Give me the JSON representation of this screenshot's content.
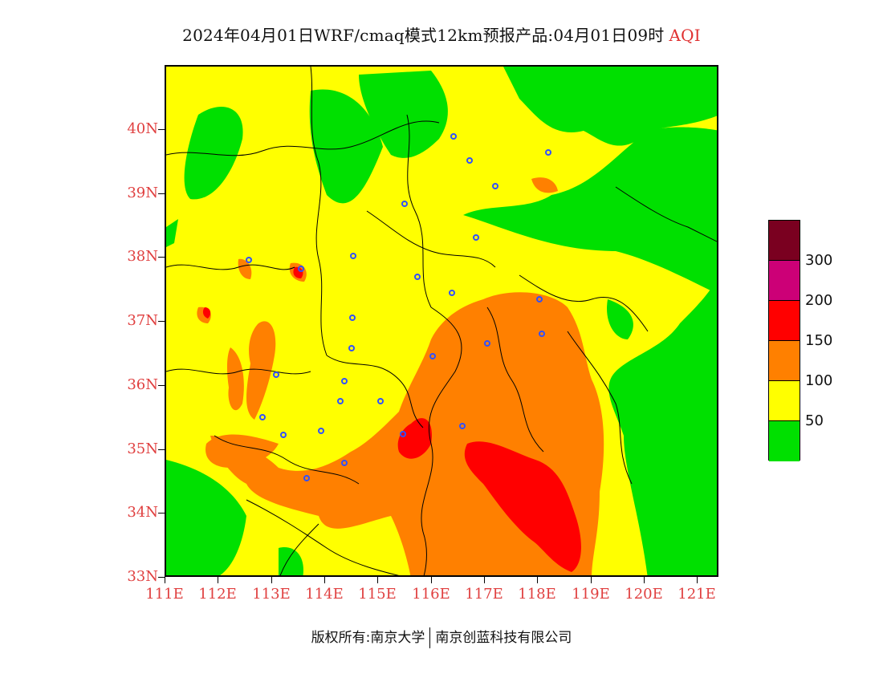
{
  "title": {
    "main": "2024年04月01日WRF/cmaq模式12km预报产品:04月01日09时",
    "variable": "AQI"
  },
  "axes": {
    "latitude_labels": [
      "40N",
      "39N",
      "38N",
      "37N",
      "36N",
      "35N",
      "34N",
      "33N"
    ],
    "longitude_labels": [
      "111E",
      "112E",
      "113E",
      "114E",
      "115E",
      "116E",
      "117E",
      "118E",
      "119E",
      "120E",
      "121E"
    ],
    "lat_range": [
      33,
      41
    ],
    "lon_range": [
      111,
      121.4
    ]
  },
  "legend": {
    "levels": [
      {
        "color": "#7a0020",
        "label": ""
      },
      {
        "color": "#cc0077",
        "label": "300"
      },
      {
        "color": "#ff0000",
        "label": "200"
      },
      {
        "color": "#ff8000",
        "label": "150"
      },
      {
        "color": "#ffff00",
        "label": "100"
      },
      {
        "color": "#00e000",
        "label": "50"
      }
    ]
  },
  "colors": {
    "good": "#00e000",
    "moderate": "#ffff00",
    "unhealthy_sensitive": "#ff8000",
    "unhealthy": "#ff0000",
    "very_unhealthy": "#cc0077",
    "hazardous": "#7a0020",
    "axis_label": "#e04040",
    "station_marker": "#3050ff"
  },
  "footer": {
    "copyright": "版权所有:南京大学",
    "company": "南京创蓝科技有限公司"
  }
}
